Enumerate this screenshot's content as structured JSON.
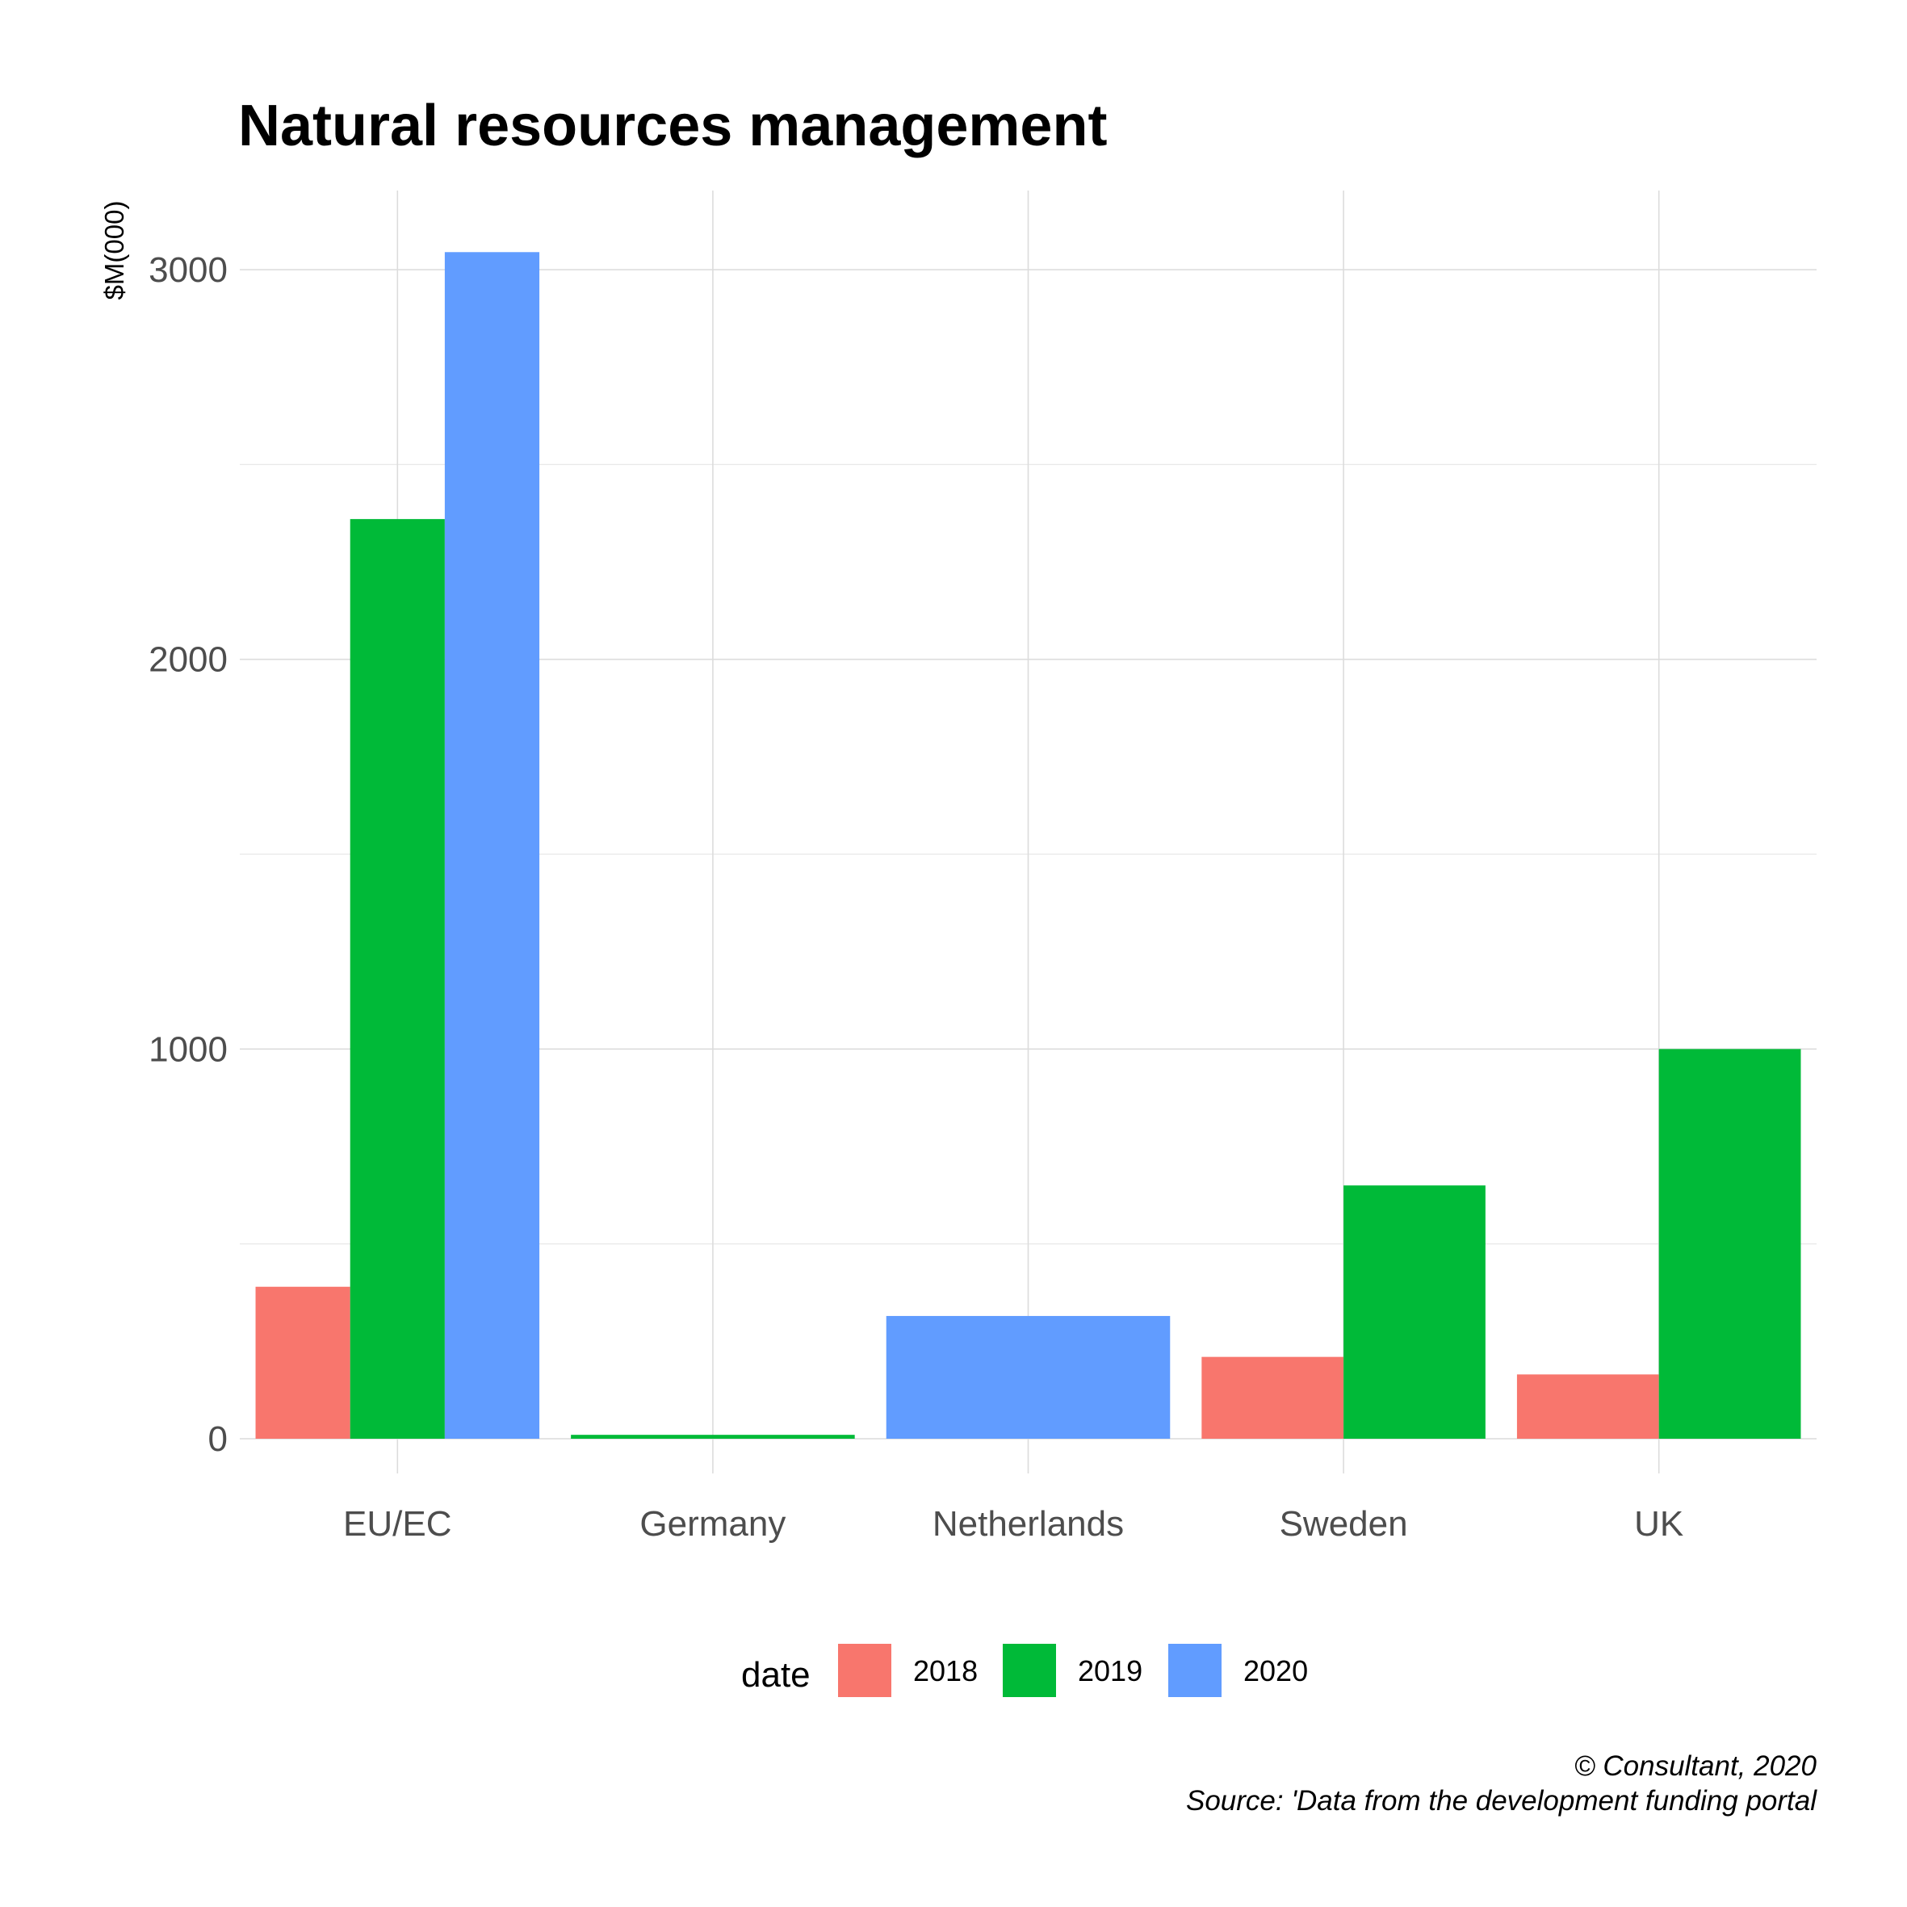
{
  "chart_data": {
    "type": "bar",
    "title": "Natural resources management",
    "xlabel": "",
    "ylabel": "$M(000)",
    "categories": [
      "EU/EC",
      "Germany",
      "Netherlands",
      "Sweden",
      "UK"
    ],
    "series": [
      {
        "name": "2018",
        "color": "#F8766D",
        "values": [
          390,
          null,
          null,
          210,
          165
        ]
      },
      {
        "name": "2019",
        "color": "#00BA38",
        "values": [
          2360,
          10,
          null,
          650,
          1000
        ]
      },
      {
        "name": "2020",
        "color": "#619CFF",
        "values": [
          3045,
          null,
          315,
          null,
          null
        ]
      }
    ],
    "ylim": [
      -90,
      3200
    ],
    "y_ticks": [
      0,
      1000,
      2000,
      3000
    ],
    "y_tick_labels": [
      "0",
      "1000",
      "2000",
      "3000"
    ],
    "grid": true,
    "legend": {
      "title": "date",
      "position": "bottom",
      "labels": [
        "2018",
        "2019",
        "2020"
      ]
    },
    "caption": {
      "line1": "© Consultant, 2020",
      "line2": "Source: 'Data from the development funding portal"
    }
  }
}
